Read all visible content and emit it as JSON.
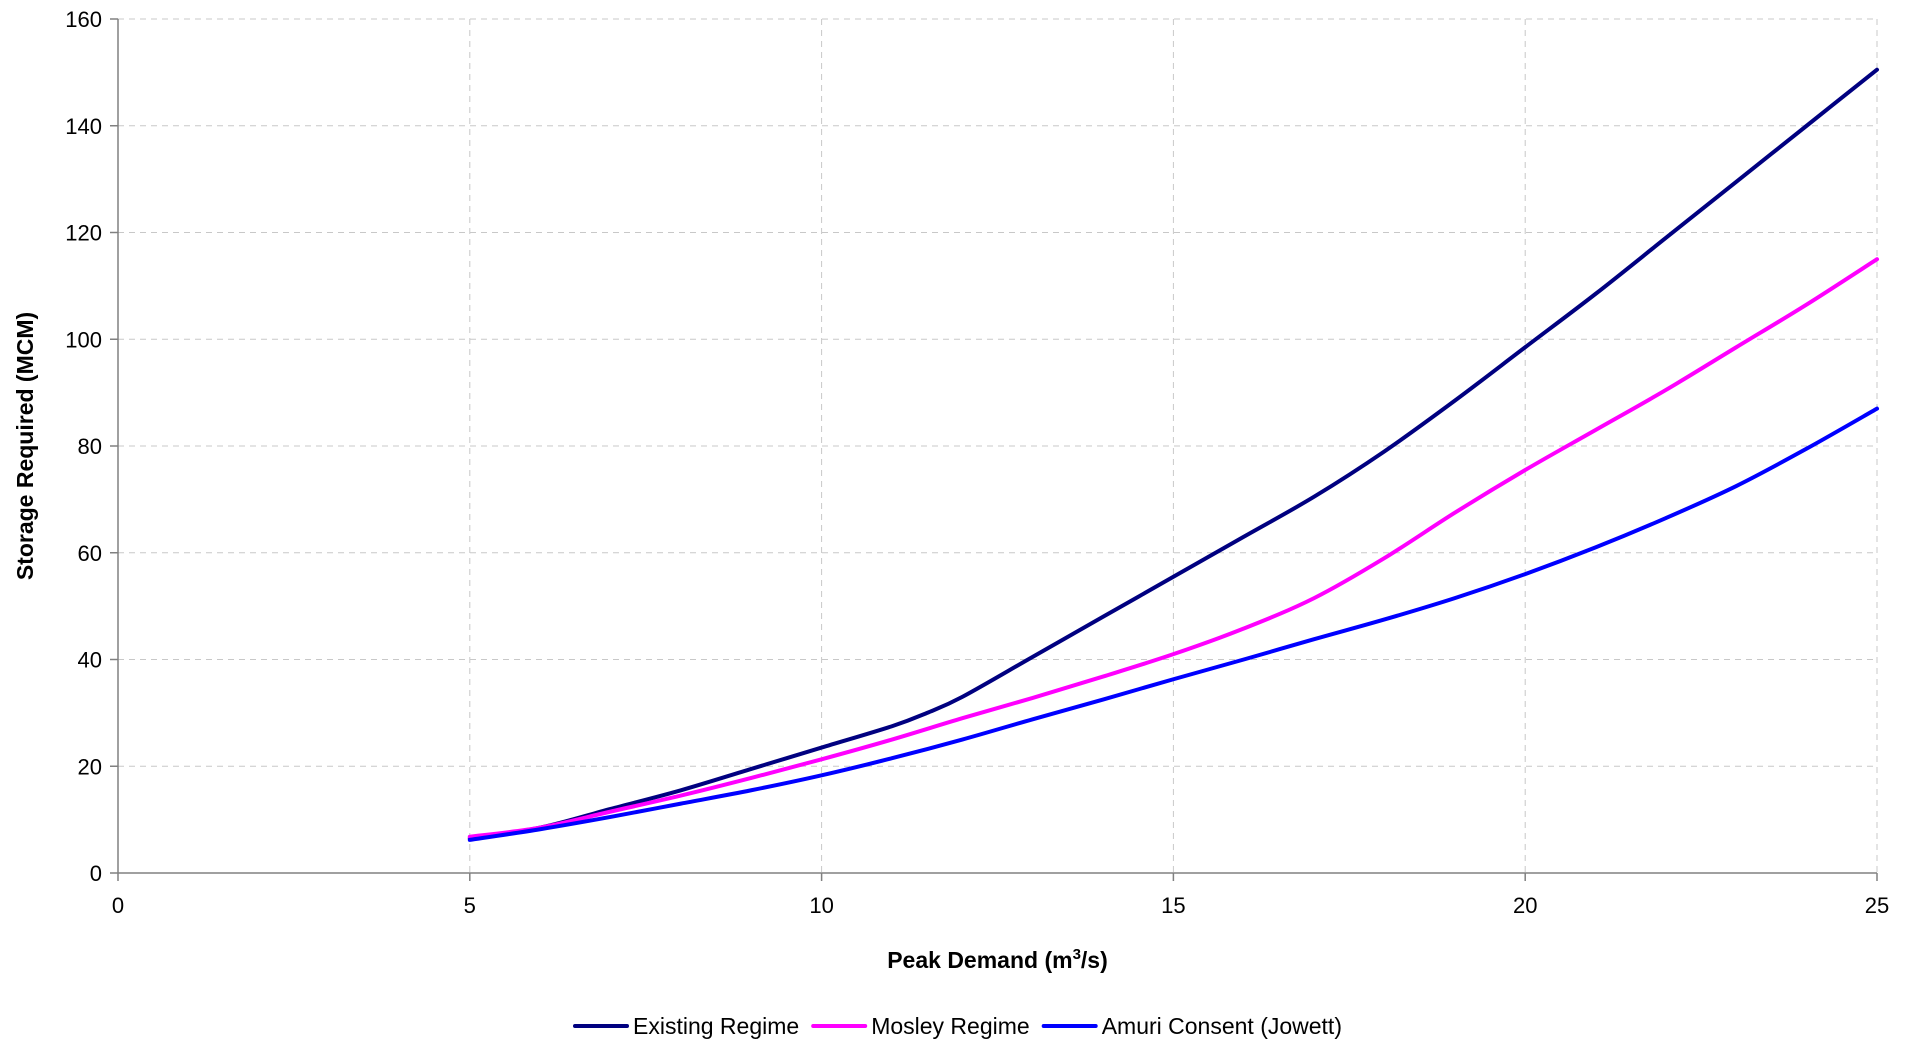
{
  "chart_data": {
    "type": "line",
    "xlabel_main": "Peak Demand (m",
    "xlabel_sup": "3",
    "xlabel_tail": "/s)",
    "ylabel": "Storage Required (MCM)",
    "xlim": [
      0,
      25
    ],
    "ylim": [
      0,
      160
    ],
    "xticks": [
      "0",
      "5",
      "10",
      "15",
      "20",
      "25"
    ],
    "yticks": [
      "0",
      "20",
      "40",
      "60",
      "80",
      "100",
      "120",
      "140",
      "160"
    ],
    "grid": true,
    "legend_position": "bottom",
    "series": [
      {
        "name": "Existing Regime",
        "color": "#000080",
        "x": [
          5,
          6,
          7,
          8,
          9,
          10,
          11,
          11.5,
          12,
          13,
          14,
          15,
          16,
          17,
          18,
          19,
          20,
          21,
          22,
          23,
          24,
          25
        ],
        "y": [
          6.5,
          8.5,
          12,
          15.5,
          19.5,
          23.5,
          27.5,
          30,
          33,
          40.5,
          48,
          55.5,
          63,
          70.5,
          79,
          88.5,
          98.5,
          108.5,
          119,
          129.5,
          140,
          150.5
        ]
      },
      {
        "name": "Mosley Regime",
        "color": "#ff00ff",
        "x": [
          5,
          6,
          7,
          8,
          9,
          10,
          11,
          12,
          13,
          14,
          15,
          16,
          17,
          18,
          19,
          20,
          21,
          22,
          23,
          24,
          25
        ],
        "y": [
          6.8,
          8.5,
          11.5,
          14.5,
          17.8,
          21.3,
          25,
          29,
          32.8,
          36.8,
          41,
          45.8,
          51.5,
          59,
          67.5,
          75.5,
          83,
          90.5,
          98.5,
          106.5,
          115
        ]
      },
      {
        "name": "Amuri Consent (Jowett)",
        "color": "#0000ff",
        "x": [
          5,
          6,
          7,
          8,
          9,
          10,
          11,
          12,
          13,
          14,
          15,
          16,
          17,
          18,
          19,
          20,
          21,
          22,
          23,
          24,
          25
        ],
        "y": [
          6.2,
          8.2,
          10.5,
          13,
          15.5,
          18.3,
          21.5,
          25,
          28.8,
          32.5,
          36.3,
          40,
          43.8,
          47.5,
          51.5,
          56,
          61,
          66.5,
          72.5,
          79.5,
          87
        ]
      }
    ]
  }
}
